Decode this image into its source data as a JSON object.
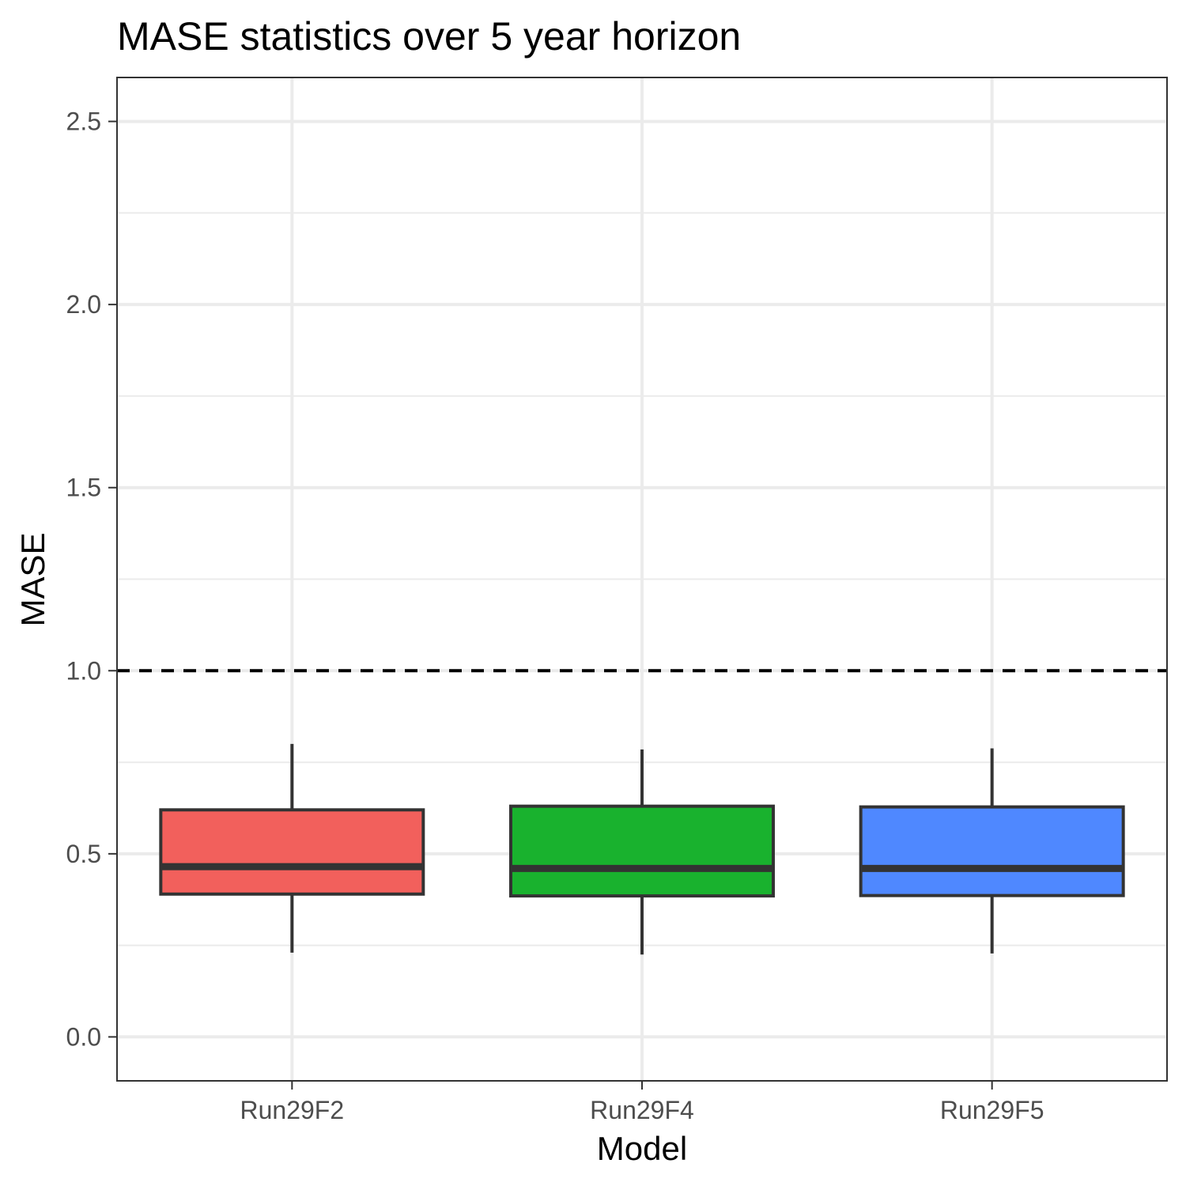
{
  "chart_data": {
    "type": "boxplot",
    "title": "MASE statistics over 5 year horizon",
    "xlabel": "Model",
    "ylabel": "MASE",
    "ylim": [
      -0.12,
      2.62
    ],
    "yticks": [
      0.0,
      0.5,
      1.0,
      1.5,
      2.0,
      2.5
    ],
    "ytick_labels": [
      "0.0",
      "0.5",
      "1.0",
      "1.5",
      "2.0",
      "2.5"
    ],
    "grid": true,
    "legend": "none",
    "reference_line": {
      "y": 1.0,
      "style": "dashed",
      "color": "#000000"
    },
    "categories": [
      "Run29F2",
      "Run29F4",
      "Run29F5"
    ],
    "boxes": [
      {
        "name": "Run29F2",
        "color": "#F2605C",
        "whisker_low": 0.23,
        "q1": 0.39,
        "median": 0.465,
        "q3": 0.62,
        "whisker_high": 0.8
      },
      {
        "name": "Run29F4",
        "color": "#19B22E",
        "whisker_low": 0.225,
        "q1": 0.385,
        "median": 0.46,
        "q3": 0.63,
        "whisker_high": 0.785
      },
      {
        "name": "Run29F5",
        "color": "#4F88FF",
        "whisker_low": 0.228,
        "q1": 0.386,
        "median": 0.46,
        "q3": 0.628,
        "whisker_high": 0.788
      }
    ]
  }
}
